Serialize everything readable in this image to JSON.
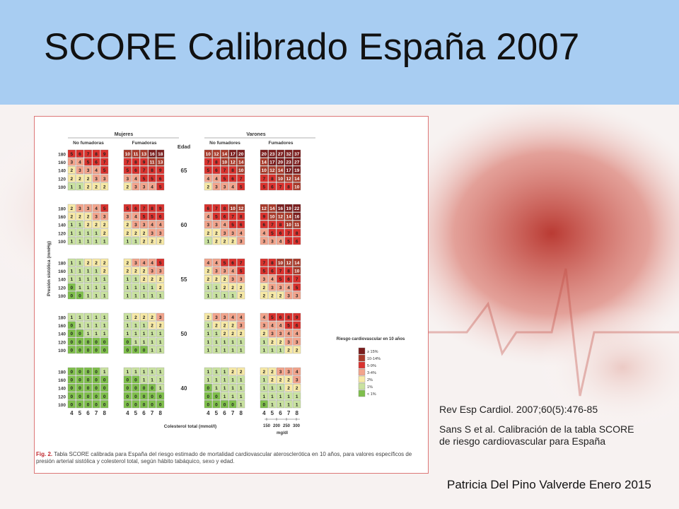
{
  "slide": {
    "title": "SCORE Calibrado España 2007"
  },
  "references": {
    "citation": "Rev Esp Cardiol. 2007;60(5):476-85",
    "source": "Sans S et al. Calibración de la tabla SCORE de riesgo cardiovascular para España",
    "footer": "Patricia Del Pino Valverde Enero 2015"
  },
  "figure": {
    "caption_label": "Fig. 2.",
    "caption_text": "Tabla SCORE calibrada para España del riesgo estimado de mortalidad cardiovascular aterosclerótica en 10 años, para valores específicos de presión arterial sistólica y colesterol total, según hábito tabáquico, sexo y edad.",
    "sex_labels": [
      "Mujeres",
      "Varones"
    ],
    "smoke_labels": [
      "No fumadoras",
      "Fumadoras",
      "No fumadores",
      "Fumadores"
    ],
    "age_header": "Edad",
    "ages": [
      "65",
      "60",
      "55",
      "50",
      "40"
    ],
    "bp_values": [
      "180",
      "160",
      "140",
      "120",
      "100"
    ],
    "chol_values": [
      "4",
      "5",
      "6",
      "7",
      "8"
    ],
    "y_axis_label": "Presión sistólica (mmHg)",
    "x_axis_label": "Colesterol total (mmol/l)",
    "mgdl_values": [
      "150",
      "200",
      "250",
      "300"
    ],
    "mgdl_unit": "mg/dl",
    "legend": {
      "title": "Riesgo cardiovascular en 10 años",
      "items": [
        {
          "label": "≥ 15%",
          "color": "#7a1d1d"
        },
        {
          "label": "10-14%",
          "color": "#a83a2a"
        },
        {
          "label": "5-9%",
          "color": "#d9322e"
        },
        {
          "label": "3-4%",
          "color": "#f2a48c"
        },
        {
          "label": "2%",
          "color": "#f7e9a6"
        },
        {
          "label": "1%",
          "color": "#c9e2a0"
        },
        {
          "label": "< 1%",
          "color": "#7fbf4c"
        }
      ]
    },
    "tables": [
      [
        [
          [
            5,
            6,
            7,
            8,
            9
          ],
          [
            3,
            4,
            5,
            6,
            7
          ],
          [
            2,
            3,
            3,
            4,
            5
          ],
          [
            2,
            2,
            2,
            3,
            3
          ],
          [
            1,
            1,
            2,
            2,
            2
          ]
        ],
        [
          [
            10,
            11,
            13,
            16,
            18
          ],
          [
            7,
            8,
            9,
            11,
            13
          ],
          [
            5,
            6,
            7,
            8,
            9
          ],
          [
            3,
            4,
            5,
            5,
            6
          ],
          [
            2,
            3,
            3,
            4,
            5
          ]
        ],
        [
          [
            10,
            12,
            14,
            17,
            20
          ],
          [
            7,
            8,
            10,
            12,
            14
          ],
          [
            5,
            6,
            7,
            8,
            10
          ],
          [
            4,
            4,
            5,
            6,
            7
          ],
          [
            2,
            3,
            3,
            4,
            5
          ]
        ],
        [
          [
            20,
            23,
            27,
            32,
            37
          ],
          [
            14,
            17,
            20,
            23,
            27
          ],
          [
            10,
            12,
            14,
            17,
            19
          ],
          [
            7,
            8,
            10,
            12,
            14
          ],
          [
            5,
            6,
            7,
            8,
            10
          ]
        ]
      ],
      [
        [
          [
            2,
            3,
            3,
            4,
            5
          ],
          [
            2,
            2,
            2,
            3,
            3
          ],
          [
            1,
            1,
            2,
            2,
            2
          ],
          [
            1,
            1,
            1,
            1,
            2
          ],
          [
            1,
            1,
            1,
            1,
            1
          ]
        ],
        [
          [
            5,
            6,
            7,
            8,
            9
          ],
          [
            3,
            4,
            5,
            5,
            6
          ],
          [
            2,
            3,
            3,
            4,
            4
          ],
          [
            2,
            2,
            2,
            3,
            3
          ],
          [
            1,
            1,
            2,
            2,
            2
          ]
        ],
        [
          [
            6,
            7,
            8,
            10,
            12
          ],
          [
            4,
            5,
            6,
            7,
            8
          ],
          [
            3,
            3,
            4,
            5,
            6
          ],
          [
            2,
            2,
            3,
            3,
            4
          ],
          [
            1,
            2,
            2,
            2,
            3
          ]
        ],
        [
          [
            12,
            14,
            16,
            19,
            22
          ],
          [
            9,
            10,
            12,
            14,
            16
          ],
          [
            6,
            7,
            8,
            10,
            11
          ],
          [
            4,
            5,
            6,
            7,
            8
          ],
          [
            3,
            3,
            4,
            5,
            6
          ]
        ]
      ],
      [
        [
          [
            1,
            1,
            2,
            2,
            2
          ],
          [
            1,
            1,
            1,
            1,
            2
          ],
          [
            1,
            1,
            1,
            1,
            1
          ],
          [
            0,
            1,
            1,
            1,
            1
          ],
          [
            0,
            0,
            1,
            1,
            1
          ]
        ],
        [
          [
            2,
            3,
            4,
            4,
            5
          ],
          [
            2,
            2,
            2,
            3,
            3
          ],
          [
            1,
            1,
            2,
            2,
            2
          ],
          [
            1,
            1,
            1,
            1,
            2
          ],
          [
            1,
            1,
            1,
            1,
            1
          ]
        ],
        [
          [
            4,
            4,
            5,
            6,
            7
          ],
          [
            2,
            3,
            3,
            4,
            5
          ],
          [
            2,
            2,
            2,
            3,
            3
          ],
          [
            1,
            1,
            2,
            2,
            2
          ],
          [
            1,
            1,
            1,
            1,
            2
          ]
        ],
        [
          [
            7,
            8,
            10,
            12,
            14
          ],
          [
            5,
            6,
            7,
            8,
            10
          ],
          [
            3,
            4,
            5,
            6,
            7
          ],
          [
            2,
            3,
            3,
            4,
            5
          ],
          [
            2,
            2,
            2,
            3,
            3
          ]
        ]
      ],
      [
        [
          [
            1,
            1,
            1,
            1,
            1
          ],
          [
            0,
            1,
            1,
            1,
            1
          ],
          [
            0,
            0,
            1,
            1,
            1
          ],
          [
            0,
            0,
            0,
            0,
            0
          ],
          [
            0,
            0,
            0,
            0,
            0
          ]
        ],
        [
          [
            1,
            2,
            2,
            2,
            3
          ],
          [
            1,
            1,
            1,
            2,
            2
          ],
          [
            1,
            1,
            1,
            1,
            1
          ],
          [
            0,
            1,
            1,
            1,
            1
          ],
          [
            0,
            0,
            0,
            1,
            1
          ]
        ],
        [
          [
            2,
            3,
            3,
            4,
            4
          ],
          [
            1,
            2,
            2,
            2,
            3
          ],
          [
            1,
            1,
            2,
            2,
            2
          ],
          [
            1,
            1,
            1,
            1,
            1
          ],
          [
            1,
            1,
            1,
            1,
            1
          ]
        ],
        [
          [
            4,
            5,
            6,
            8,
            9
          ],
          [
            3,
            4,
            4,
            5,
            6
          ],
          [
            2,
            3,
            3,
            4,
            4
          ],
          [
            1,
            2,
            2,
            3,
            3
          ],
          [
            1,
            1,
            1,
            2,
            2
          ]
        ]
      ],
      [
        [
          [
            0,
            0,
            0,
            0,
            1
          ],
          [
            0,
            0,
            0,
            0,
            0
          ],
          [
            0,
            0,
            0,
            0,
            0
          ],
          [
            0,
            0,
            0,
            0,
            0
          ],
          [
            0,
            0,
            0,
            0,
            0
          ]
        ],
        [
          [
            1,
            1,
            1,
            1,
            1
          ],
          [
            0,
            0,
            1,
            1,
            1
          ],
          [
            0,
            0,
            0,
            0,
            1
          ],
          [
            0,
            0,
            0,
            0,
            0
          ],
          [
            0,
            0,
            0,
            0,
            0
          ]
        ],
        [
          [
            1,
            1,
            1,
            2,
            2
          ],
          [
            1,
            1,
            1,
            1,
            1
          ],
          [
            0,
            1,
            1,
            1,
            1
          ],
          [
            0,
            0,
            1,
            1,
            1
          ],
          [
            0,
            0,
            0,
            0,
            1
          ]
        ],
        [
          [
            2,
            2,
            3,
            3,
            4
          ],
          [
            1,
            2,
            2,
            2,
            3
          ],
          [
            1,
            1,
            1,
            2,
            2
          ],
          [
            1,
            1,
            1,
            1,
            1
          ],
          [
            0,
            1,
            1,
            1,
            1
          ]
        ]
      ]
    ]
  }
}
